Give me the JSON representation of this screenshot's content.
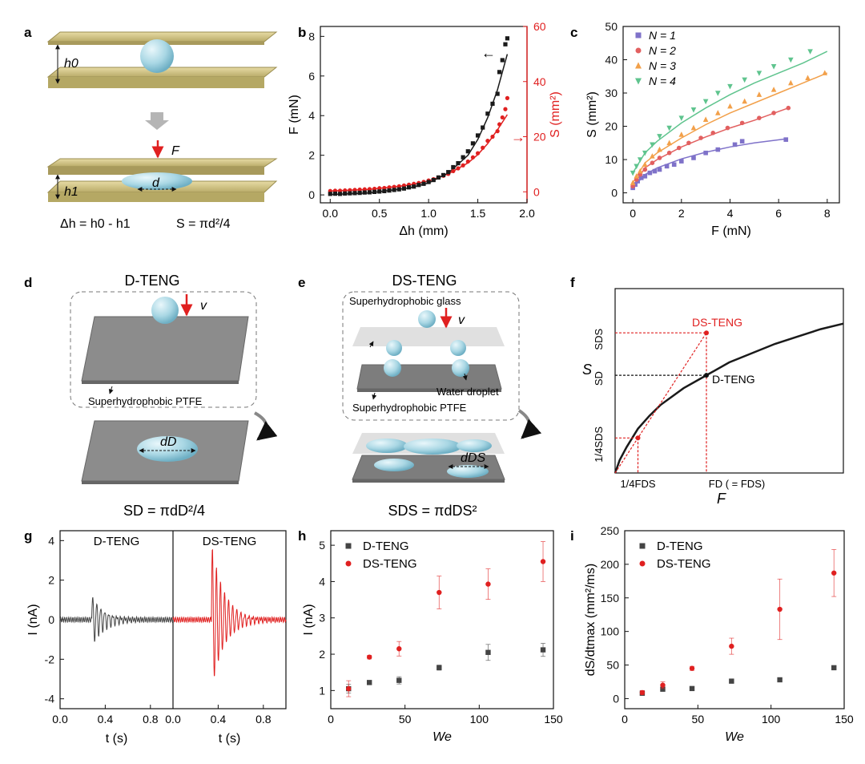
{
  "panel_letters": [
    "a",
    "b",
    "c",
    "d",
    "e",
    "f",
    "g",
    "h",
    "i"
  ],
  "colors": {
    "black": "#1a1a1a",
    "red": "#e02020",
    "gray_dark": "#444444",
    "n1": "#7f72c9",
    "n2": "#e26060",
    "n3": "#f2a04a",
    "n4": "#5fc48e",
    "plate": "#c8bb7e",
    "droplet": "#a9d7e4"
  },
  "panel_a": {
    "h0": "h0",
    "h1": "h1",
    "force": "F",
    "d": "d",
    "eq1": "Δh = h0 - h1",
    "eq2": "S = πd²/4"
  },
  "panel_d": {
    "title": "D-TENG",
    "v": "v",
    "ptfe_label": "Superhydrophobic PTFE",
    "d_label": "dD",
    "formula": "SD = πdD²/4"
  },
  "panel_e": {
    "title": "DS-TENG",
    "glass_label": "Superhydrophobic glass",
    "v": "v",
    "droplet_label": "Water droplet",
    "ptfe_label": "Superhydrophobic PTFE",
    "d_label": "dDS",
    "formula": "SDS = πdDS²"
  },
  "chart_data": [
    {
      "id": "b",
      "type": "scatter",
      "xlabel": "Δh (mm)",
      "ylabel": "F (mN)",
      "y2label": "S (mm²)",
      "xlim": [
        -0.1,
        2.0
      ],
      "ylim": [
        -0.4,
        8.5
      ],
      "y2lim": [
        -4,
        60
      ],
      "xticks": [
        0.0,
        0.5,
        1.0,
        1.5,
        2.0
      ],
      "xticklabels": [
        "0.0",
        "0.5",
        "1.0",
        "1.5",
        "2.0"
      ],
      "yticks": [
        0,
        2,
        4,
        6,
        8
      ],
      "yticklabels": [
        "0",
        "2",
        "4",
        "6",
        "8"
      ],
      "y2ticks": [
        0,
        20,
        40,
        60
      ],
      "y2ticklabels": [
        "0",
        "20",
        "40",
        "60"
      ],
      "series": [
        {
          "name": "F",
          "axis": "left",
          "x": [
            0,
            0.05,
            0.1,
            0.15,
            0.2,
            0.25,
            0.3,
            0.35,
            0.4,
            0.45,
            0.5,
            0.55,
            0.6,
            0.65,
            0.7,
            0.75,
            0.8,
            0.85,
            0.9,
            0.95,
            1.0,
            1.05,
            1.1,
            1.15,
            1.2,
            1.25,
            1.3,
            1.35,
            1.4,
            1.45,
            1.5,
            1.55,
            1.6,
            1.65,
            1.7,
            1.72,
            1.75,
            1.78,
            1.8
          ],
          "y": [
            0.05,
            0.06,
            0.05,
            0.07,
            0.08,
            0.09,
            0.1,
            0.12,
            0.13,
            0.15,
            0.17,
            0.19,
            0.22,
            0.25,
            0.28,
            0.32,
            0.38,
            0.42,
            0.5,
            0.56,
            0.65,
            0.75,
            0.88,
            1.0,
            1.15,
            1.4,
            1.6,
            1.9,
            2.2,
            2.6,
            3.0,
            3.4,
            4.1,
            4.6,
            5.1,
            6.2,
            6.8,
            7.6,
            7.9
          ]
        },
        {
          "name": "S",
          "axis": "right",
          "x": [
            0,
            0.05,
            0.1,
            0.15,
            0.2,
            0.25,
            0.3,
            0.35,
            0.4,
            0.45,
            0.5,
            0.55,
            0.6,
            0.65,
            0.7,
            0.75,
            0.8,
            0.85,
            0.9,
            0.95,
            1.0,
            1.05,
            1.1,
            1.15,
            1.2,
            1.25,
            1.3,
            1.35,
            1.4,
            1.45,
            1.5,
            1.55,
            1.6,
            1.65,
            1.7,
            1.72,
            1.75,
            1.78,
            1.8
          ],
          "y": [
            0.3,
            0.4,
            0.4,
            0.5,
            0.6,
            0.7,
            0.8,
            0.9,
            1.0,
            1.1,
            1.3,
            1.4,
            1.6,
            1.8,
            2.0,
            2.3,
            2.6,
            2.9,
            3.2,
            3.6,
            4.1,
            4.6,
            5.2,
            5.8,
            6.5,
            7.5,
            8.5,
            9.6,
            11,
            12.5,
            14,
            16,
            18.5,
            20,
            22,
            24.5,
            27,
            30,
            34
          ]
        }
      ],
      "fit_F": {
        "x": [
          0,
          0.4,
          0.8,
          1.0,
          1.2,
          1.4,
          1.5,
          1.6,
          1.7,
          1.8
        ],
        "y": [
          0.02,
          0.1,
          0.35,
          0.6,
          1.1,
          2.0,
          2.8,
          3.9,
          5.3,
          7.1
        ]
      },
      "fit_S": {
        "x": [
          0,
          0.4,
          0.8,
          1.0,
          1.2,
          1.4,
          1.5,
          1.6,
          1.7,
          1.8
        ],
        "y": [
          0.3,
          0.9,
          2.4,
          3.9,
          6.5,
          10.5,
          13.5,
          17.5,
          22.5,
          28
        ]
      },
      "annotations": [
        "←",
        "→"
      ]
    },
    {
      "id": "c",
      "type": "scatter",
      "xlabel": "F (mN)",
      "ylabel": "S (mm²)",
      "xlim": [
        -0.4,
        8.5
      ],
      "ylim": [
        -3,
        50
      ],
      "xticks": [
        0,
        2,
        4,
        6,
        8
      ],
      "xticklabels": [
        "0",
        "2",
        "4",
        "6",
        "8"
      ],
      "yticks": [
        0,
        10,
        20,
        30,
        40,
        50
      ],
      "yticklabels": [
        "0",
        "10",
        "20",
        "30",
        "40",
        "50"
      ],
      "legend": [
        "N = 1",
        "N = 2",
        "N = 3",
        "N = 4"
      ],
      "series": [
        {
          "name": "N = 1",
          "marker": "square",
          "x": [
            0,
            0.1,
            0.2,
            0.35,
            0.5,
            0.7,
            0.9,
            1.1,
            1.4,
            1.7,
            2.0,
            2.5,
            3.0,
            3.5,
            4.2,
            4.5,
            6.3
          ],
          "y": [
            1.5,
            2.5,
            3.5,
            4.5,
            5,
            6,
            6.5,
            7,
            8,
            8.5,
            9.5,
            10.5,
            12,
            13,
            14.5,
            15.5,
            16
          ]
        },
        {
          "name": "N = 2",
          "marker": "circle",
          "x": [
            0,
            0.15,
            0.3,
            0.5,
            0.8,
            1.1,
            1.5,
            1.9,
            2.3,
            2.8,
            3.3,
            3.9,
            4.5,
            5.2,
            5.8,
            6.4
          ],
          "y": [
            2,
            4,
            5.5,
            7,
            9,
            10.5,
            12,
            13.5,
            15,
            16.5,
            18,
            19.5,
            21,
            22.5,
            24,
            25.5
          ]
        },
        {
          "name": "N = 3",
          "marker": "triangle-up",
          "x": [
            0,
            0.15,
            0.3,
            0.5,
            0.8,
            1.1,
            1.5,
            2.0,
            2.5,
            3.0,
            3.5,
            4.0,
            4.6,
            5.2,
            5.8,
            6.5,
            7.2,
            7.9
          ],
          "y": [
            3,
            5,
            6.5,
            8.5,
            11,
            13,
            15,
            17.5,
            19.5,
            22,
            24,
            26,
            27.5,
            29.5,
            31,
            33,
            34.5,
            36
          ]
        },
        {
          "name": "N = 4",
          "marker": "triangle-down",
          "x": [
            0,
            0.15,
            0.3,
            0.5,
            0.8,
            1.1,
            1.5,
            2.0,
            2.5,
            3.0,
            3.5,
            4.0,
            4.6,
            5.2,
            5.8,
            6.5,
            7.3
          ],
          "y": [
            6,
            8,
            10,
            12,
            14.5,
            17,
            19.5,
            22.5,
            25,
            27.5,
            30,
            32,
            34,
            36,
            38,
            40,
            42.5
          ]
        }
      ],
      "fits": [
        {
          "name": "N = 1",
          "x": [
            0,
            0.5,
            1,
            2,
            3,
            4,
            5,
            6.3
          ],
          "y": [
            1.5,
            5.5,
            7.5,
            10.2,
            12.2,
            13.8,
            15,
            16.2
          ]
        },
        {
          "name": "N = 2",
          "x": [
            0,
            0.5,
            1,
            2,
            3,
            4,
            5,
            6.4
          ],
          "y": [
            2,
            7.5,
            10,
            13.8,
            16.8,
            19.5,
            21.8,
            25.5
          ]
        },
        {
          "name": "N = 3",
          "x": [
            0,
            0.5,
            1,
            2,
            3,
            4,
            5,
            6,
            7,
            8
          ],
          "y": [
            3,
            9,
            12,
            16.5,
            20.5,
            24,
            27,
            30,
            33,
            36
          ]
        },
        {
          "name": "N = 4",
          "x": [
            0,
            0.5,
            1,
            2,
            3,
            4,
            5,
            6,
            7,
            8
          ],
          "y": [
            6,
            12,
            15.5,
            21,
            25.5,
            29.5,
            33,
            36,
            39,
            42.5
          ]
        }
      ]
    },
    {
      "id": "f",
      "type": "line",
      "xlabel": "F",
      "ylabel": "S",
      "xlim": [
        0,
        1
      ],
      "ylim": [
        0,
        1
      ],
      "series": [
        {
          "name": "S(F)",
          "x": [
            0,
            0.02,
            0.05,
            0.1,
            0.15,
            0.2,
            0.3,
            0.4,
            0.5,
            0.6,
            0.7,
            0.8,
            0.9,
            1.0
          ],
          "y": [
            0,
            0.07,
            0.14,
            0.24,
            0.31,
            0.37,
            0.46,
            0.53,
            0.6,
            0.65,
            0.7,
            0.74,
            0.78,
            0.81
          ]
        }
      ],
      "point_D": {
        "x": 0.4,
        "y": 0.53,
        "label": "D-TENG"
      },
      "point_DS": {
        "x": 0.4,
        "y": 0.76,
        "label": "DS-TENG"
      },
      "point_quarter": {
        "x": 0.1,
        "y": 0.19
      },
      "y_labels": [
        "SDS",
        "SD",
        "1/4SDS"
      ],
      "x_labels": [
        "1/4FDS",
        "FD ( = FDS)"
      ]
    },
    {
      "id": "g",
      "type": "line",
      "xlabel": "t (s)",
      "ylabel": "I (nA)",
      "ylim": [
        -4.5,
        4.5
      ],
      "yticks": [
        -4,
        -2,
        0,
        2,
        4
      ],
      "yticklabels": [
        "-4",
        "-2",
        "0",
        "2",
        "4"
      ],
      "xticklabels": [
        "0.0",
        "0.4",
        "0.8"
      ],
      "subpanels": [
        {
          "label": "D-TENG",
          "xlim": [
            0,
            1.0
          ],
          "xticks": [
            0,
            0.4,
            0.8
          ],
          "peak_time": 0.3,
          "peak_amp": 1.3
        },
        {
          "label": "DS-TENG",
          "xlim": [
            0,
            1.0
          ],
          "xticks": [
            0,
            0.4,
            0.8
          ],
          "peak_time": 0.36,
          "peak_amp": 3.8
        }
      ]
    },
    {
      "id": "h",
      "type": "scatter",
      "xlabel": "We",
      "ylabel": "I (nA)",
      "xlim": [
        0,
        150
      ],
      "ylim": [
        0.5,
        5.4
      ],
      "xticks": [
        0,
        50,
        100,
        150
      ],
      "xticklabels": [
        "0",
        "50",
        "100",
        "150"
      ],
      "yticks": [
        1,
        2,
        3,
        4,
        5
      ],
      "yticklabels": [
        "1",
        "2",
        "3",
        "4",
        "5"
      ],
      "legend": [
        "D-TENG",
        "DS-TENG"
      ],
      "series": [
        {
          "name": "D-TENG",
          "x": [
            12,
            26,
            46,
            73,
            106,
            143
          ],
          "y": [
            1.05,
            1.22,
            1.28,
            1.63,
            2.05,
            2.12
          ],
          "err": [
            0.12,
            0.06,
            0.1,
            0.07,
            0.22,
            0.18
          ]
        },
        {
          "name": "DS-TENG",
          "x": [
            12,
            26,
            46,
            73,
            106,
            143
          ],
          "y": [
            1.05,
            1.92,
            2.15,
            3.7,
            3.93,
            4.55
          ],
          "err": [
            0.22,
            0.05,
            0.2,
            0.45,
            0.42,
            0.55
          ]
        }
      ]
    },
    {
      "id": "i",
      "type": "scatter",
      "xlabel": "We",
      "ylabel": "dS/dtmax (mm²/ms)",
      "xlim": [
        0,
        150
      ],
      "ylim": [
        -15,
        250
      ],
      "xticks": [
        0,
        50,
        100,
        150
      ],
      "xticklabels": [
        "0",
        "50",
        "100",
        "150"
      ],
      "yticks": [
        0,
        50,
        100,
        150,
        200,
        250
      ],
      "yticklabels": [
        "0",
        "50",
        "100",
        "150",
        "200",
        "250"
      ],
      "legend": [
        "D-TENG",
        "DS-TENG"
      ],
      "series": [
        {
          "name": "D-TENG",
          "x": [
            12,
            26,
            46,
            73,
            106,
            143
          ],
          "y": [
            8,
            14,
            15,
            26,
            28,
            46
          ],
          "err": [
            2,
            2,
            2,
            2,
            2,
            2
          ]
        },
        {
          "name": "DS-TENG",
          "x": [
            12,
            26,
            46,
            73,
            106,
            143
          ],
          "y": [
            9,
            20,
            45,
            78,
            133,
            187
          ],
          "err": [
            3,
            5,
            3,
            12,
            45,
            35
          ]
        }
      ]
    }
  ]
}
